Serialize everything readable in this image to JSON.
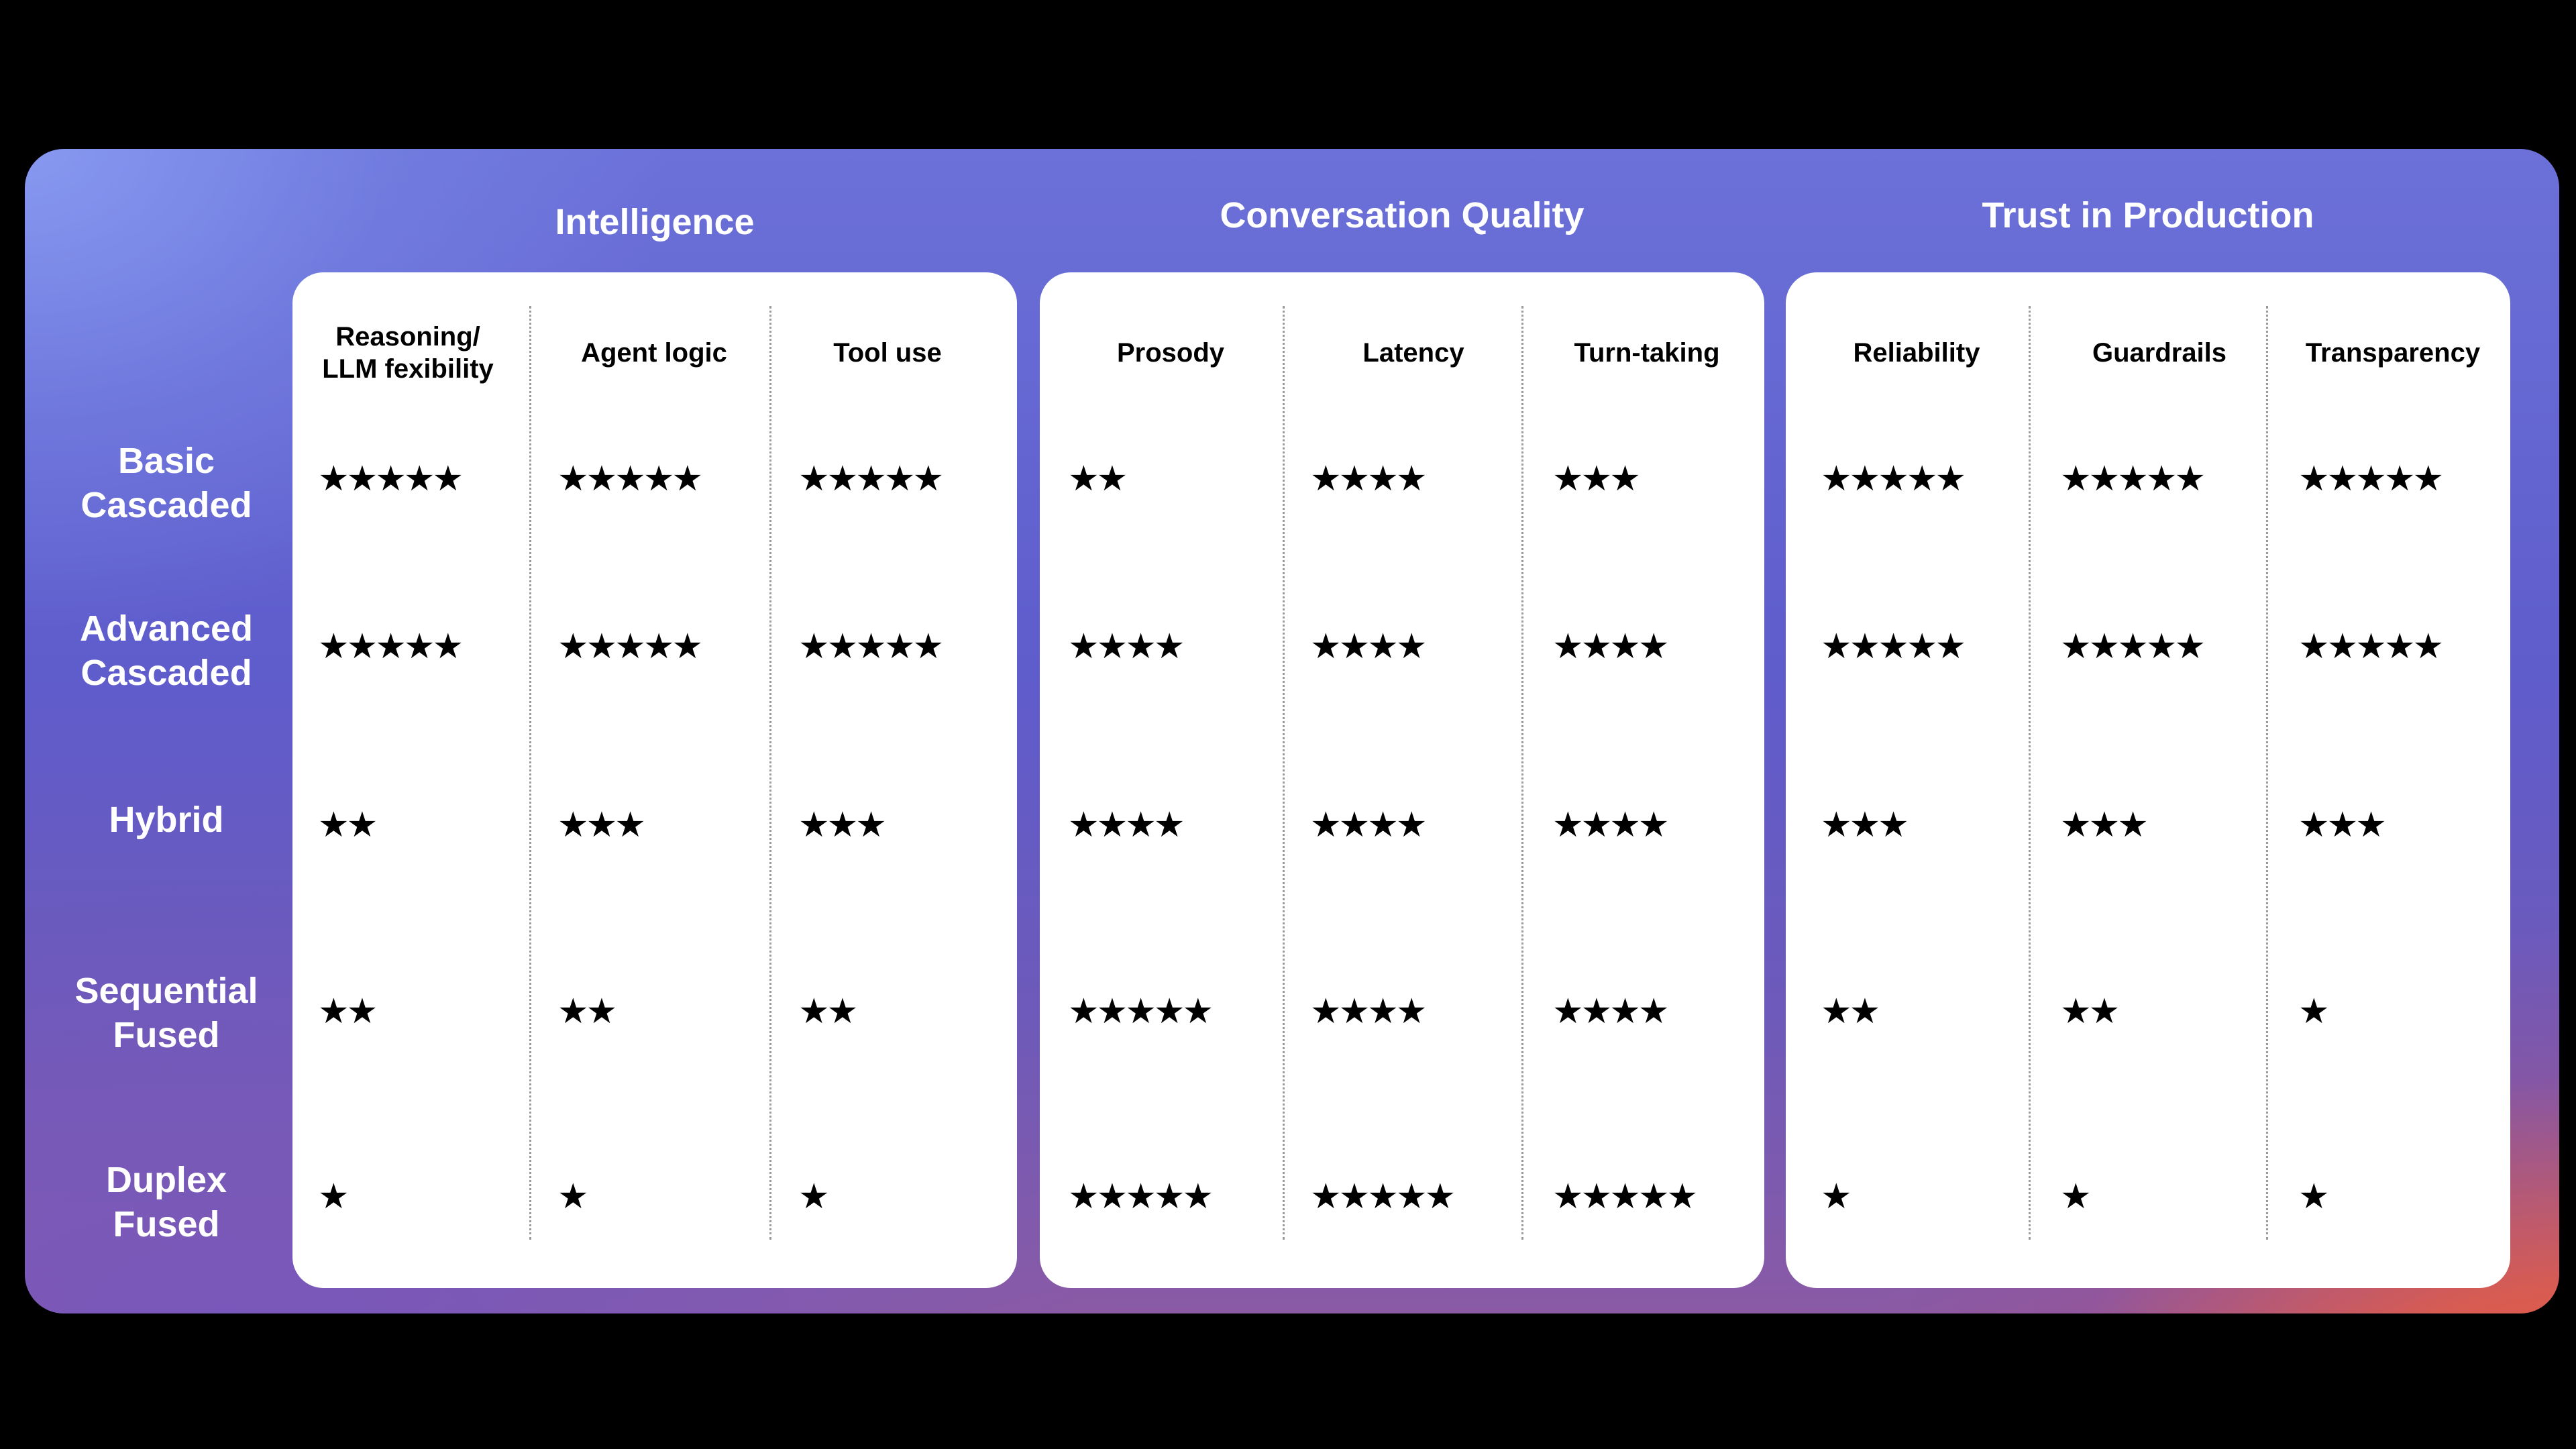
{
  "groups": [
    {
      "title": "Intelligence",
      "columns": [
        "Reasoning/\nLLM fexibility",
        "Agent logic",
        "Tool use"
      ]
    },
    {
      "title": "Conversation Quality",
      "columns": [
        "Prosody",
        "Latency",
        "Turn-taking"
      ]
    },
    {
      "title": "Trust in Production",
      "columns": [
        "Reliability",
        "Guardrails",
        "Transparency"
      ]
    }
  ],
  "rows": [
    {
      "label": "Basic\nCascaded",
      "ratings": [
        5,
        5,
        5,
        2,
        4,
        3,
        5,
        5,
        5
      ]
    },
    {
      "label": "Advanced\nCascaded",
      "ratings": [
        5,
        5,
        5,
        4,
        4,
        4,
        5,
        5,
        5
      ]
    },
    {
      "label": "Hybrid",
      "ratings": [
        2,
        3,
        3,
        4,
        4,
        4,
        3,
        3,
        3
      ]
    },
    {
      "label": "Sequential\nFused",
      "ratings": [
        2,
        2,
        2,
        5,
        4,
        4,
        2,
        2,
        1
      ]
    },
    {
      "label": "Duplex\nFused",
      "ratings": [
        1,
        1,
        1,
        5,
        5,
        5,
        1,
        1,
        1
      ]
    }
  ],
  "rating_symbol": "★",
  "rating_max": 5,
  "colors": {
    "background": "#000000",
    "gradient_top_left": "#8a9bf0",
    "gradient_mid": "#5f5ccc",
    "gradient_bottom_right": "#ff5428",
    "card": "#ffffff",
    "text_on_gradient": "#ffffff",
    "text_on_card": "#000000"
  }
}
